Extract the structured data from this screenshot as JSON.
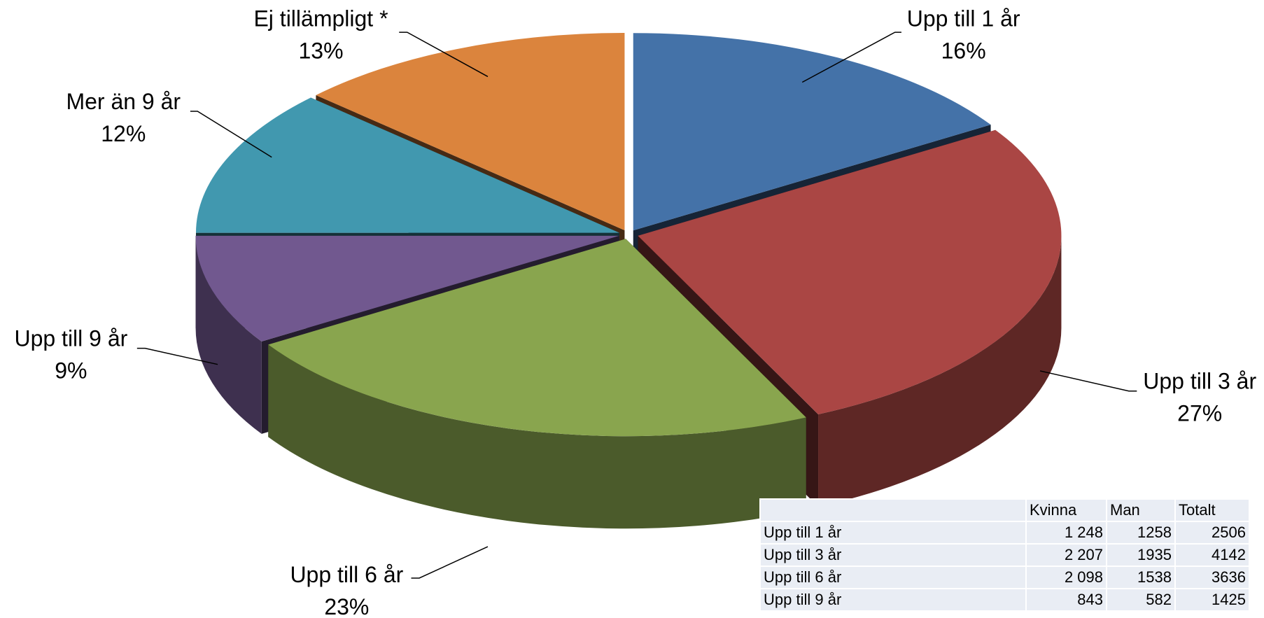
{
  "chart_data": {
    "type": "pie",
    "categories": [
      "Upp till 1 år",
      "Upp till 3 år",
      "Upp till 6 år",
      "Upp till 9 år",
      "Mer än 9 år",
      "Ej tillämpligt *"
    ],
    "values": [
      16,
      27,
      23,
      9,
      12,
      13
    ],
    "value_labels": [
      "16%",
      "27%",
      "23%",
      "9%",
      "12%",
      "13%"
    ],
    "colors": [
      "#4472a8",
      "#aa4644",
      "#89a54e",
      "#71588f",
      "#4198af",
      "#db843d"
    ]
  },
  "table": {
    "header": [
      "Kvinna",
      "Man",
      "Totalt"
    ],
    "rows": [
      [
        "Upp till 1 år",
        "1 248",
        "1258",
        "2506"
      ],
      [
        "Upp till 3 år",
        "2 207",
        "1935",
        "4142"
      ],
      [
        "Upp till 6 år",
        "2 098",
        "1538",
        "3636"
      ],
      [
        "Upp till 9 år",
        "843",
        "582",
        "1425"
      ]
    ]
  }
}
